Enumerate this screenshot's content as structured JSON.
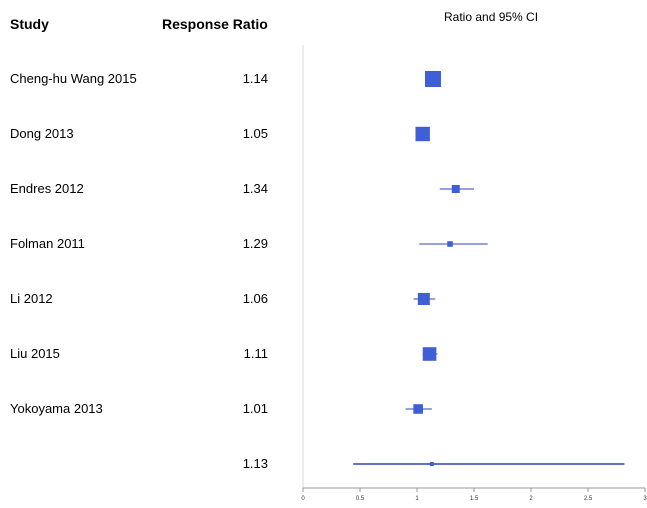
{
  "headers": {
    "study": "Study",
    "ratio": "Response Ratio"
  },
  "chart_data": {
    "type": "forest",
    "title": "Ratio and 95% CI",
    "xlim": [
      0,
      3
    ],
    "xticks": [
      0,
      0.5,
      1,
      1.5,
      2,
      2.5,
      3
    ],
    "xtick_labels": [
      "0",
      "0.5",
      "1",
      "1.5",
      "2",
      "2.5",
      "3"
    ],
    "reference_line": 1,
    "rows": [
      {
        "study": "Cheng-hu Wang 2015",
        "ratio_label": "1.14",
        "estimate": 1.14,
        "lower": 1.08,
        "upper": 1.21,
        "weight": 1.0
      },
      {
        "study": "Dong 2013",
        "ratio_label": "1.05",
        "estimate": 1.05,
        "lower": 0.99,
        "upper": 1.11,
        "weight": 0.9
      },
      {
        "study": "Endres 2012",
        "ratio_label": "1.34",
        "estimate": 1.34,
        "lower": 1.2,
        "upper": 1.5,
        "weight": 0.5
      },
      {
        "study": "Folman 2011",
        "ratio_label": "1.29",
        "estimate": 1.29,
        "lower": 1.02,
        "upper": 1.62,
        "weight": 0.35
      },
      {
        "study": "Li 2012",
        "ratio_label": "1.06",
        "estimate": 1.06,
        "lower": 0.97,
        "upper": 1.16,
        "weight": 0.75
      },
      {
        "study": "Liu 2015",
        "ratio_label": "1.11",
        "estimate": 1.11,
        "lower": 1.05,
        "upper": 1.18,
        "weight": 0.85
      },
      {
        "study": "Yokoyama 2013",
        "ratio_label": "1.01",
        "estimate": 1.01,
        "lower": 0.9,
        "upper": 1.13,
        "weight": 0.6
      },
      {
        "study": "",
        "ratio_label": "1.13",
        "estimate": 1.13,
        "lower": 0.44,
        "upper": 2.82,
        "weight": 0.2
      }
    ],
    "colors": {
      "marker": "#3f5fd6",
      "line": "#2f45b4",
      "axis": "#999999"
    }
  }
}
